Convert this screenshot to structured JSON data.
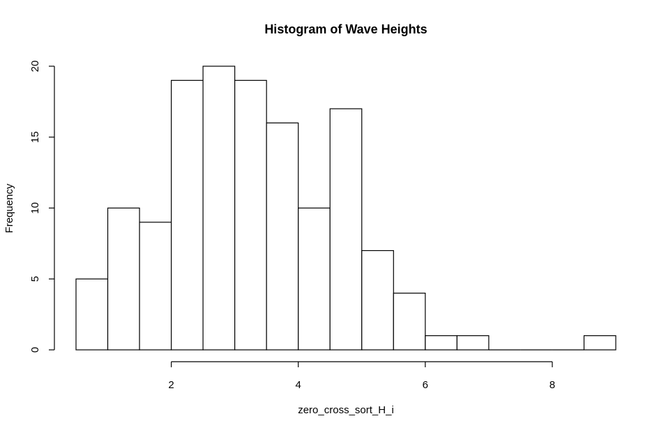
{
  "chart_data": {
    "type": "bar",
    "subtype": "histogram",
    "title": "Histogram of Wave Heights",
    "xlabel": "zero_cross_sort_H_i",
    "ylabel": "Frequency",
    "bin_edges": [
      0.5,
      1.0,
      1.5,
      2.0,
      2.5,
      3.0,
      3.5,
      4.0,
      4.5,
      5.0,
      5.5,
      6.0,
      6.5,
      7.0,
      7.5,
      8.0,
      8.5,
      9.0
    ],
    "values": [
      5,
      10,
      9,
      19,
      20,
      19,
      16,
      10,
      17,
      7,
      4,
      1,
      1,
      0,
      0,
      0,
      1
    ],
    "xticks": [
      2,
      4,
      6,
      8
    ],
    "yticks": [
      0,
      5,
      10,
      15,
      20
    ],
    "xlim": [
      0.5,
      9.0
    ],
    "ylim": [
      0,
      20
    ],
    "grid": false,
    "bar_fill": "#ffffff",
    "bar_stroke": "#000000"
  }
}
